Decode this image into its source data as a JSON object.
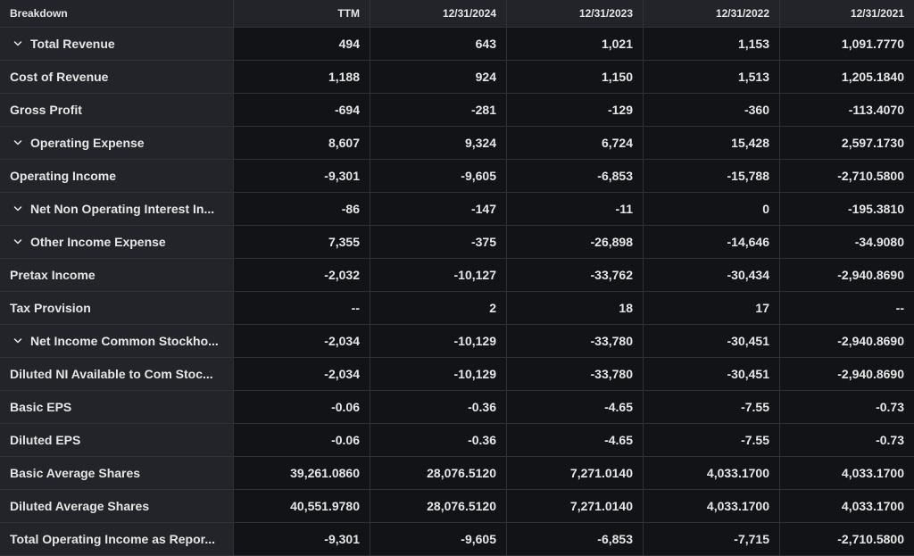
{
  "header": {
    "label": "Breakdown",
    "columns": [
      "TTM",
      "12/31/2024",
      "12/31/2023",
      "12/31/2022",
      "12/31/2021"
    ]
  },
  "rows": [
    {
      "label": "Total Revenue",
      "expandable": true,
      "values": [
        "494",
        "643",
        "1,021",
        "1,153",
        "1,091.7770"
      ]
    },
    {
      "label": "Cost of Revenue",
      "expandable": false,
      "values": [
        "1,188",
        "924",
        "1,150",
        "1,513",
        "1,205.1840"
      ]
    },
    {
      "label": "Gross Profit",
      "expandable": false,
      "values": [
        "-694",
        "-281",
        "-129",
        "-360",
        "-113.4070"
      ]
    },
    {
      "label": "Operating Expense",
      "expandable": true,
      "values": [
        "8,607",
        "9,324",
        "6,724",
        "15,428",
        "2,597.1730"
      ]
    },
    {
      "label": "Operating Income",
      "expandable": false,
      "values": [
        "-9,301",
        "-9,605",
        "-6,853",
        "-15,788",
        "-2,710.5800"
      ]
    },
    {
      "label": "Net Non Operating Interest In...",
      "expandable": true,
      "values": [
        "-86",
        "-147",
        "-11",
        "0",
        "-195.3810"
      ]
    },
    {
      "label": "Other Income Expense",
      "expandable": true,
      "values": [
        "7,355",
        "-375",
        "-26,898",
        "-14,646",
        "-34.9080"
      ]
    },
    {
      "label": "Pretax Income",
      "expandable": false,
      "values": [
        "-2,032",
        "-10,127",
        "-33,762",
        "-30,434",
        "-2,940.8690"
      ]
    },
    {
      "label": "Tax Provision",
      "expandable": false,
      "values": [
        "--",
        "2",
        "18",
        "17",
        "--"
      ]
    },
    {
      "label": "Net Income Common Stockho...",
      "expandable": true,
      "values": [
        "-2,034",
        "-10,129",
        "-33,780",
        "-30,451",
        "-2,940.8690"
      ]
    },
    {
      "label": "Diluted NI Available to Com Stoc...",
      "expandable": false,
      "values": [
        "-2,034",
        "-10,129",
        "-33,780",
        "-30,451",
        "-2,940.8690"
      ]
    },
    {
      "label": "Basic EPS",
      "expandable": false,
      "values": [
        "-0.06",
        "-0.36",
        "-4.65",
        "-7.55",
        "-0.73"
      ]
    },
    {
      "label": "Diluted EPS",
      "expandable": false,
      "values": [
        "-0.06",
        "-0.36",
        "-4.65",
        "-7.55",
        "-0.73"
      ]
    },
    {
      "label": "Basic Average Shares",
      "expandable": false,
      "values": [
        "39,261.0860",
        "28,076.5120",
        "7,271.0140",
        "4,033.1700",
        "4,033.1700"
      ]
    },
    {
      "label": "Diluted Average Shares",
      "expandable": false,
      "values": [
        "40,551.9780",
        "28,076.5120",
        "7,271.0140",
        "4,033.1700",
        "4,033.1700"
      ]
    },
    {
      "label": "Total Operating Income as Repor...",
      "expandable": false,
      "values": [
        "-9,301",
        "-9,605",
        "-6,853",
        "-7,715",
        "-2,710.5800"
      ]
    }
  ],
  "icons": {
    "expand": "chevron-down-icon"
  }
}
